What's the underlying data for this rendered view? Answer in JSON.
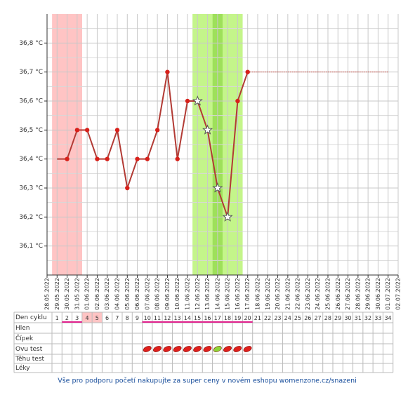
{
  "chart_data": {
    "type": "line",
    "categories": [
      "28.05.2022",
      "29.05.2022",
      "30.05.2022",
      "31.05.2022",
      "01.06.2022",
      "02.06.2022",
      "03.06.2022",
      "04.06.2022",
      "05.06.2022",
      "06.06.2022",
      "07.06.2022",
      "08.06.2022",
      "09.06.2022",
      "10.06.2022",
      "11.06.2022",
      "12.06.2022",
      "13.06.2022",
      "14.06.2022",
      "15.06.2022",
      "16.06.2022",
      "17.06.2022",
      "18.06.2022",
      "19.06.2022",
      "20.06.2022",
      "21.06.2022",
      "22.06.2022",
      "23.06.2022",
      "24.06.2022",
      "25.06.2022",
      "26.06.2022",
      "27.06.2022",
      "28.06.2022",
      "29.06.2022",
      "30.06.2022",
      "01.07.2022",
      "02.07.2022"
    ],
    "series": [
      {
        "color": "#b23a34",
        "values": [
          null,
          36.4,
          36.4,
          36.5,
          36.5,
          36.4,
          36.4,
          36.5,
          36.3,
          36.4,
          36.4,
          36.5,
          36.7,
          36.4,
          36.6,
          36.6,
          36.5,
          36.3,
          36.2,
          36.6,
          36.7,
          null,
          null,
          null,
          null,
          null,
          null,
          null,
          null,
          null,
          null,
          null,
          null,
          null,
          null,
          null
        ]
      }
    ],
    "markers": [
      null,
      null,
      "dot",
      "dot",
      "dot",
      "dot",
      "dot",
      "dot",
      "dot",
      "dot",
      "dot",
      "dot",
      "dot",
      "dot",
      "dot",
      "star",
      "star",
      "star",
      "star",
      "dot",
      "dot",
      null,
      null,
      null,
      null,
      null,
      null,
      null,
      null,
      null,
      null,
      null,
      null,
      null,
      null,
      null
    ],
    "ylim": [
      36.0,
      36.9
    ],
    "yticks": [
      {
        "value": 36.1,
        "label": "36,1 °C"
      },
      {
        "value": 36.2,
        "label": "36,2 °C"
      },
      {
        "value": 36.3,
        "label": "36,3 °C"
      },
      {
        "value": 36.4,
        "label": "36,4 °C"
      },
      {
        "value": 36.5,
        "label": "36,5 °C"
      },
      {
        "value": 36.6,
        "label": "36,6 °C"
      },
      {
        "value": 36.7,
        "label": "36,7 °C"
      },
      {
        "value": 36.8,
        "label": "36,8 °C"
      }
    ],
    "minor_gridlines": [
      36.05,
      36.15,
      36.25,
      36.35,
      36.45,
      36.55,
      36.65,
      36.75,
      36.85
    ],
    "hline": {
      "value": 36.7,
      "from": "17.06.2022",
      "to": "01.07.2022",
      "color": "#c04a44"
    },
    "bands": [
      {
        "from": "29.05.2022",
        "to": "31.05.2022",
        "color": "#ffc4c4"
      },
      {
        "from": "12.06.2022",
        "to": "16.06.2022",
        "color": "#c4f58a"
      },
      {
        "from": "14.06.2022",
        "to": "14.06.2022",
        "color": "#9ee05a"
      }
    ]
  },
  "table": {
    "row_labels": [
      "Den cyklu",
      "Hlen",
      "Čípek",
      "Ovu test",
      "Těhu test",
      "Léky"
    ],
    "cycle_days": [
      1,
      2,
      3,
      4,
      5,
      6,
      7,
      8,
      9,
      10,
      11,
      12,
      13,
      14,
      15,
      16,
      17,
      18,
      19,
      20,
      21,
      22,
      23,
      24,
      25,
      26,
      27,
      28,
      29,
      30,
      31,
      32,
      33,
      34
    ],
    "highlighted_days": [
      4,
      5
    ],
    "underlined_days": [
      2,
      3,
      10,
      11,
      12,
      13,
      14,
      15,
      16,
      17,
      18,
      19,
      20
    ],
    "ovu_test": [
      null,
      null,
      null,
      null,
      null,
      null,
      null,
      null,
      null,
      "#e0201c",
      "#e0201c",
      "#e0201c",
      "#e0201c",
      "#e0201c",
      "#e0201c",
      "#e0201c",
      "#8ed636",
      "#e0201c",
      "#e0201c",
      "#e0201c",
      null,
      null,
      null,
      null,
      null,
      null,
      null,
      null,
      null,
      null,
      null,
      null,
      null,
      null
    ]
  },
  "footer": "Vše pro podporu početí nakupujte za super ceny v novém eshopu womenzone.cz/snazeni"
}
